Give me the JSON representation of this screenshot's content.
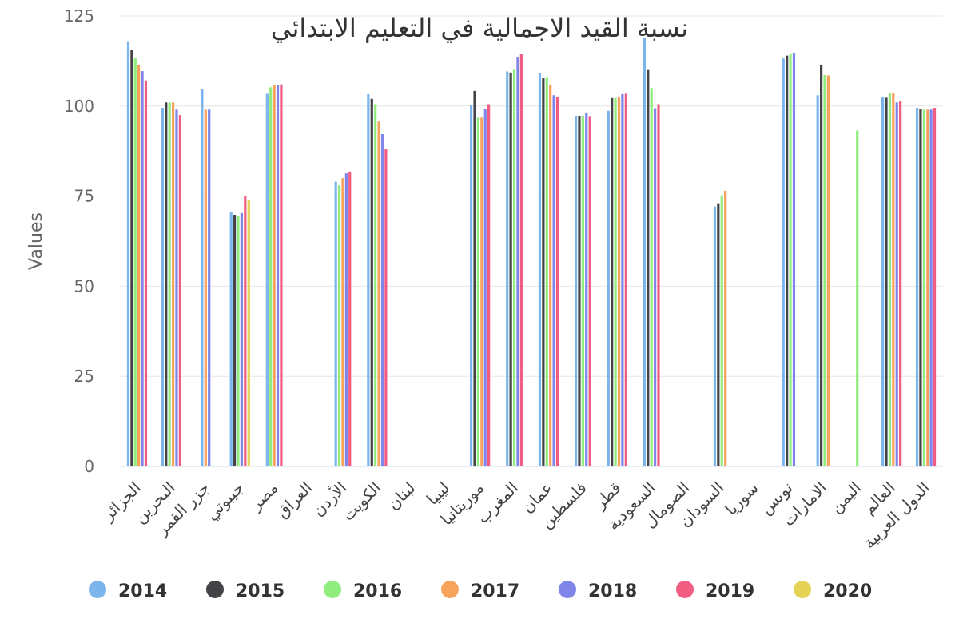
{
  "chart_data": {
    "type": "bar",
    "title": "نسبة القيد الاجمالية في التعليم الابتدائي",
    "ylabel": "Values",
    "xlabel": "",
    "ylim": [
      0,
      125
    ],
    "yticks": [
      "0",
      "25",
      "50",
      "75",
      "100",
      "125"
    ],
    "grid": true,
    "legend_position": "bottom",
    "categories": [
      "الجزائر",
      "البحرين",
      "جزر القمر",
      "جيبوتي",
      "مصر",
      "العراق",
      "الأردن",
      "الكويت",
      "لبنان",
      "ليبيا",
      "موريتانيا",
      "المغرب",
      "عمان",
      "فلسطين",
      "قطر",
      "السعودية",
      "الصومال",
      "السودان",
      "سوريا",
      "تونس",
      "الامارات",
      "اليمن",
      "العالم",
      "الدول العربية"
    ],
    "series": [
      {
        "name": "2014",
        "color": "#7cb5ec",
        "values": [
          118,
          99.5,
          104.8,
          70.5,
          103.4,
          null,
          79,
          103.3,
          null,
          null,
          100.2,
          109.6,
          109.2,
          97.3,
          98.7,
          119,
          null,
          72.1,
          null,
          113.2,
          103,
          null,
          102.5,
          99.5
        ]
      },
      {
        "name": "2015",
        "color": "#434348",
        "values": [
          115.5,
          101,
          null,
          69.8,
          null,
          null,
          null,
          102,
          null,
          null,
          104.2,
          109.3,
          107.7,
          97.3,
          102.2,
          110,
          null,
          73,
          null,
          114,
          111.5,
          null,
          102.3,
          99.1
        ]
      },
      {
        "name": "2016",
        "color": "#90ed7d",
        "values": [
          113.5,
          101,
          null,
          69.5,
          105.2,
          null,
          78,
          100.5,
          null,
          null,
          96.8,
          110.1,
          107.8,
          97.3,
          102.2,
          105,
          null,
          75.2,
          null,
          114.5,
          108.6,
          93.2,
          103.5,
          99
        ]
      },
      {
        "name": "2017",
        "color": "#f7a35c",
        "values": [
          111.3,
          101,
          99,
          null,
          105.8,
          null,
          80,
          95.7,
          null,
          null,
          96.8,
          null,
          106,
          null,
          102.6,
          null,
          null,
          76.5,
          null,
          null,
          108.5,
          null,
          103.5,
          99
        ]
      },
      {
        "name": "2018",
        "color": "#8085e9",
        "values": [
          109.7,
          99,
          99,
          70.3,
          105.9,
          null,
          81.3,
          92.2,
          null,
          null,
          99.1,
          113.7,
          103,
          98,
          103.3,
          99.4,
          null,
          null,
          null,
          114.8,
          null,
          null,
          101,
          99
        ]
      },
      {
        "name": "2019",
        "color": "#f15c80",
        "values": [
          107.1,
          97.5,
          null,
          75,
          106,
          null,
          81.8,
          88,
          null,
          null,
          100.5,
          114.4,
          102.5,
          97.2,
          103.4,
          100.5,
          null,
          null,
          null,
          null,
          null,
          null,
          101.3,
          99.5
        ]
      },
      {
        "name": "2020",
        "color": "#e4d354",
        "values": [
          null,
          null,
          null,
          74,
          null,
          null,
          null,
          null,
          null,
          null,
          null,
          null,
          null,
          null,
          null,
          null,
          null,
          null,
          null,
          null,
          null,
          null,
          null,
          null
        ]
      }
    ]
  }
}
